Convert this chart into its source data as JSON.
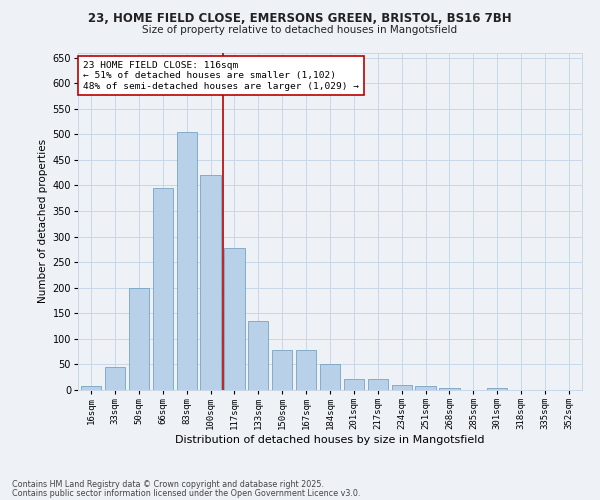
{
  "title_line1": "23, HOME FIELD CLOSE, EMERSONS GREEN, BRISTOL, BS16 7BH",
  "title_line2": "Size of property relative to detached houses in Mangotsfield",
  "xlabel": "Distribution of detached houses by size in Mangotsfield",
  "ylabel": "Number of detached properties",
  "categories": [
    "16sqm",
    "33sqm",
    "50sqm",
    "66sqm",
    "83sqm",
    "100sqm",
    "117sqm",
    "133sqm",
    "150sqm",
    "167sqm",
    "184sqm",
    "201sqm",
    "217sqm",
    "234sqm",
    "251sqm",
    "268sqm",
    "285sqm",
    "301sqm",
    "318sqm",
    "335sqm",
    "352sqm"
  ],
  "values": [
    8,
    45,
    200,
    395,
    505,
    420,
    278,
    135,
    78,
    78,
    50,
    22,
    22,
    10,
    8,
    3,
    0,
    3,
    0,
    0,
    0
  ],
  "bar_color": "#b8d0e8",
  "bar_edge_color": "#6699bb",
  "grid_color": "#c8d8e8",
  "bg_color": "#eef2f7",
  "vline_color": "#bb0000",
  "annotation_text": "23 HOME FIELD CLOSE: 116sqm\n← 51% of detached houses are smaller (1,102)\n48% of semi-detached houses are larger (1,029) →",
  "annotation_box_color": "#ffffff",
  "annotation_box_edge": "#bb0000",
  "footer_line1": "Contains HM Land Registry data © Crown copyright and database right 2025.",
  "footer_line2": "Contains public sector information licensed under the Open Government Licence v3.0.",
  "ylim": [
    0,
    660
  ],
  "yticks": [
    0,
    50,
    100,
    150,
    200,
    250,
    300,
    350,
    400,
    450,
    500,
    550,
    600,
    650
  ]
}
